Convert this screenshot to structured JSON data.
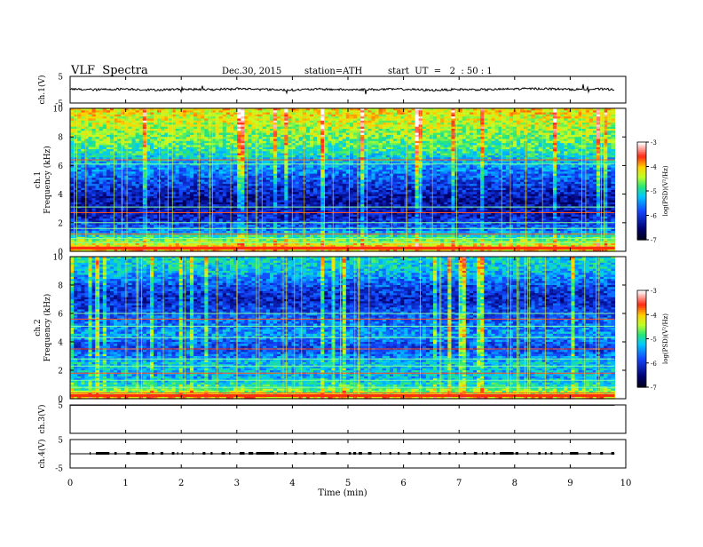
{
  "header": {
    "title": "VLF  Spectra",
    "date": "Dec.30, 2015",
    "station": "station=ATH",
    "start": "start  UT  =   2  : 50 : 1"
  },
  "colors": {
    "spectrogram_low": "#000030",
    "spectrogram_mid": "#2f6cff",
    "spectrogram_high": "#ffff40",
    "trace": "#000000"
  },
  "chart_data": [
    {
      "type": "line",
      "name": "ch1-voltage-trace",
      "ylabel": "ch.1(V)",
      "ylim": [
        -5,
        5
      ],
      "yticks": [
        "5",
        "-5"
      ],
      "xlim": [
        0,
        10
      ],
      "baseline": 0,
      "x": [
        0,
        0.5,
        1,
        1.5,
        2,
        2.5,
        3,
        3.5,
        4,
        4.5,
        5,
        5.5,
        6,
        6.5,
        7,
        7.5,
        8,
        8.5,
        9,
        9.5,
        9.8
      ],
      "y": [
        0.2,
        0.0,
        0.3,
        -0.1,
        0.2,
        0.0,
        0.4,
        0.1,
        -0.1,
        0.2,
        0.0,
        0.1,
        0.2,
        -0.2,
        0.1,
        0.0,
        0.3,
        0.4,
        0.1,
        0.2,
        0.1
      ]
    },
    {
      "type": "heatmap",
      "name": "ch1-spectrogram",
      "ylabel": "ch.1\nFrequency  (kHz)",
      "ylim": [
        0,
        10
      ],
      "yticks": [
        "10",
        "8",
        "6",
        "4",
        "2",
        "0"
      ],
      "xlim": [
        0,
        10
      ],
      "data_xmax": 9.8,
      "colorbar": {
        "label": "log(PSD)(V²/Hz)",
        "range": [
          -7,
          -3
        ],
        "ticks": [
          "-3",
          "-4",
          "-5",
          "-6",
          "-7"
        ]
      },
      "level_profile": [
        [
          0,
          -4.0
        ],
        [
          0.5,
          -4.2
        ],
        [
          1.5,
          -5.6
        ],
        [
          2.5,
          -6.2
        ],
        [
          3.5,
          -6.3
        ],
        [
          4.5,
          -6.0
        ],
        [
          6,
          -5.4
        ],
        [
          7,
          -4.9
        ],
        [
          8,
          -4.6
        ],
        [
          9,
          -4.3
        ],
        [
          10,
          -4.1
        ]
      ],
      "lines_khz": [
        0.3,
        0.6,
        0.9,
        1.2,
        1.6,
        2.0,
        2.7,
        3.1,
        6.1,
        6.4
      ]
    },
    {
      "type": "heatmap",
      "name": "ch2-spectrogram",
      "ylabel": "ch.2\nFrequency  (kHz)",
      "ylim": [
        0,
        10
      ],
      "yticks": [
        "10",
        "8",
        "6",
        "4",
        "2",
        "0"
      ],
      "xlim": [
        0,
        10
      ],
      "data_xmax": 9.8,
      "colorbar": {
        "label": "log(PSD)(V²/Hz)",
        "range": [
          -7,
          -3
        ],
        "ticks": [
          "-3",
          "-4",
          "-5",
          "-6",
          "-7"
        ]
      },
      "level_profile": [
        [
          0,
          -3.9
        ],
        [
          0.5,
          -4.5
        ],
        [
          1.0,
          -5.0
        ],
        [
          1.5,
          -5.3
        ],
        [
          2.5,
          -5.2
        ],
        [
          3.5,
          -5.9
        ],
        [
          4.5,
          -5.4
        ],
        [
          6,
          -5.8
        ],
        [
          7,
          -6.1
        ],
        [
          8,
          -5.8
        ],
        [
          9,
          -5.2
        ],
        [
          10,
          -5.0
        ]
      ],
      "lines_khz": [
        0.4,
        0.8,
        1.3,
        1.8,
        2.3,
        2.8,
        3.5,
        4.3,
        5.1,
        5.6,
        6.0
      ]
    },
    {
      "type": "line",
      "name": "ch3-voltage-trace",
      "ylabel": "ch.3(V)",
      "ylim": [
        -5,
        5
      ],
      "yticks": [
        "5"
      ],
      "xlim": [
        0,
        10
      ],
      "x": [
        0,
        9.8
      ],
      "y": [
        4.9,
        4.9
      ]
    },
    {
      "type": "line",
      "name": "ch4-voltage-trace",
      "ylabel": "ch.4(V)",
      "ylim": [
        -5,
        5
      ],
      "yticks": [
        "5",
        "-5"
      ],
      "xlim": [
        0,
        10
      ],
      "baseline": 0,
      "x": [
        0,
        9.8
      ],
      "y": [
        0,
        0
      ]
    }
  ],
  "xaxis": {
    "label": "Time  (min)",
    "ticks": [
      "0",
      "1",
      "2",
      "3",
      "4",
      "5",
      "6",
      "7",
      "8",
      "9",
      "10"
    ],
    "range": [
      0,
      10
    ]
  }
}
